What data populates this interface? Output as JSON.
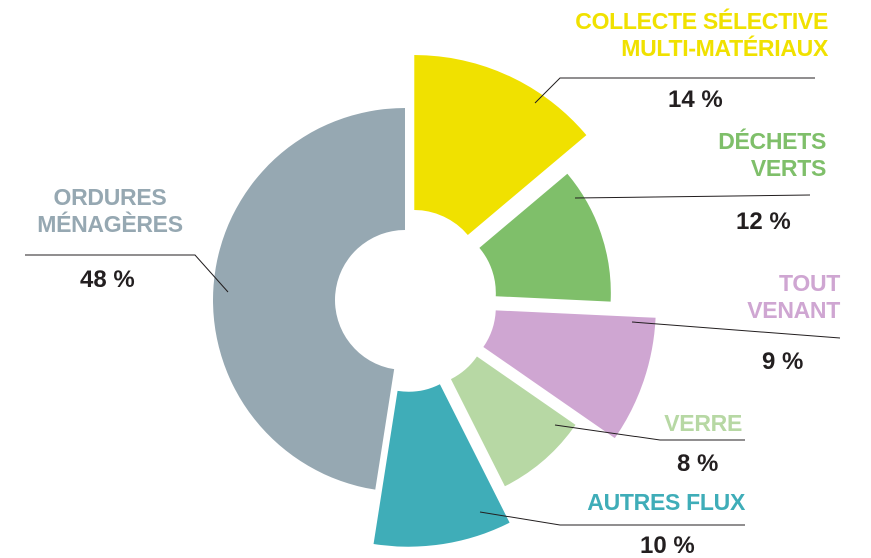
{
  "chart_data": {
    "type": "donut",
    "categories": [
      "COLLECTE SÉLECTIVE\nMULTI-MATÉRIAUX",
      "DÉCHETS\nVERTS",
      "TOUT\nVENANT",
      "VERRE",
      "AUTRES FLUX",
      "ORDURES\nMÉNAGÈRES"
    ],
    "values": [
      14,
      12,
      9,
      8,
      10,
      48
    ],
    "value_labels": [
      "14 %",
      "12 %",
      "9 %",
      "8 %",
      "10 %",
      "48 %"
    ],
    "colors": [
      "#f0e100",
      "#7fbf6a",
      "#cfa6d2",
      "#b7d8a4",
      "#3fadb8",
      "#96a8b2"
    ]
  }
}
